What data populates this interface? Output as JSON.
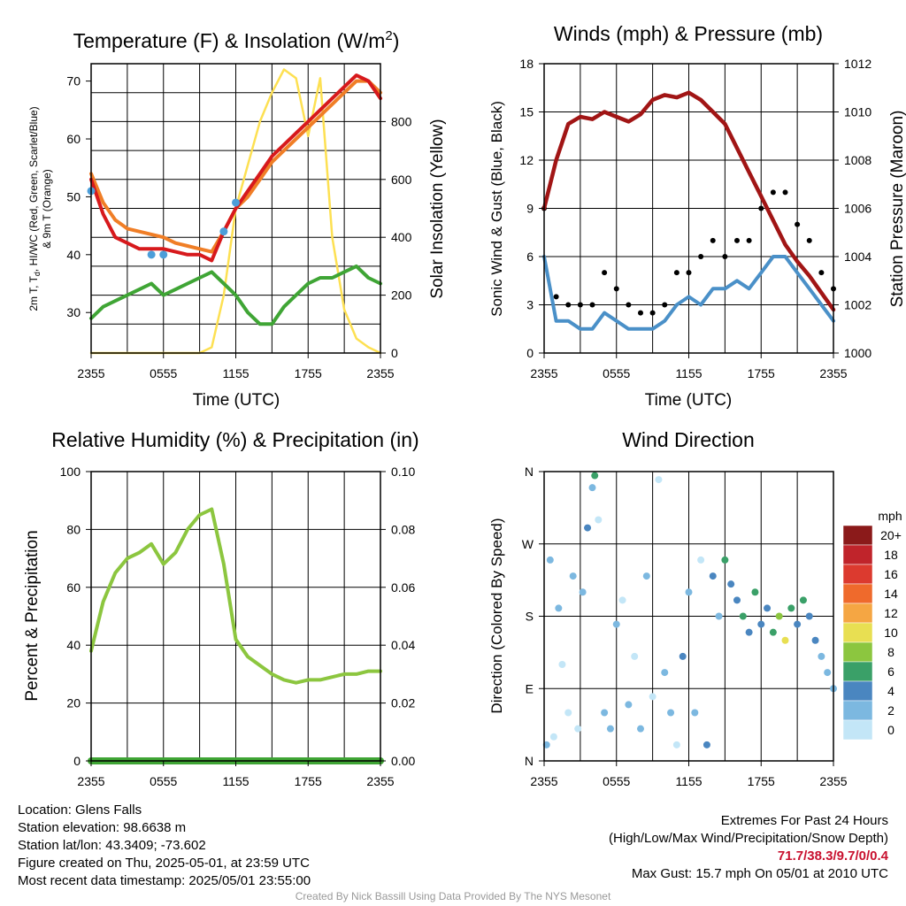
{
  "chart_data": [
    {
      "type": "line",
      "title": "Temperature (F) & Insolation (W/m²)",
      "title_main": "Temperature (F) & Insolation (W/m",
      "title_sup": "2",
      "title_close": ")",
      "xlabel": "Time (UTC)",
      "ylabel_line1": "2m T, T",
      "ylabel_sub": "d",
      "ylabel_line1_rest": ", HI/WC (Red, Green, Scarlet/Blue)",
      "ylabel_line2": "& 9m T (Orange)",
      "y2label": "Solar Insolation (Yellow)",
      "x_ticks": [
        "2355",
        "0555",
        "1155",
        "1755",
        "2355"
      ],
      "ylim": [
        23,
        73
      ],
      "y_ticks": [
        30,
        40,
        50,
        60,
        70
      ],
      "y2lim": [
        0,
        1000
      ],
      "y2_ticks": [
        0,
        200,
        400,
        600,
        800
      ],
      "x_hours": [
        0,
        1,
        2,
        3,
        4,
        5,
        6,
        7,
        8,
        9,
        10,
        11,
        12,
        13,
        14,
        15,
        16,
        17,
        18,
        19,
        20,
        21,
        22,
        23,
        24
      ],
      "series": [
        {
          "color": "#f07e26",
          "values": [
            54,
            49,
            46,
            44.5,
            44,
            43.5,
            43,
            42,
            41.5,
            41,
            40.5,
            44,
            48,
            50,
            53,
            56,
            58,
            60,
            62,
            64,
            66,
            68,
            70,
            70,
            68
          ]
        },
        {
          "color": "#d7191c",
          "values": [
            53,
            47,
            43,
            42,
            41,
            41,
            41,
            40.5,
            40,
            40,
            39,
            44,
            48,
            51,
            54,
            57,
            59,
            61,
            63,
            65,
            67,
            69,
            71,
            70,
            67
          ]
        },
        {
          "color": "#3fa535",
          "values": [
            29,
            31,
            32,
            33,
            34,
            35,
            33,
            34,
            35,
            36,
            37,
            35,
            33,
            30,
            28,
            28,
            31,
            33,
            35,
            36,
            36,
            37,
            38,
            36,
            35
          ]
        },
        {
          "color": "#4c9ed9",
          "values": [
            51,
            null,
            null,
            null,
            null,
            40,
            40,
            null,
            null,
            null,
            null,
            44,
            49,
            null,
            null,
            null,
            null,
            null,
            null,
            null,
            null,
            null,
            null,
            null,
            null
          ]
        }
      ],
      "insolation": {
        "color": "#fde052",
        "values": [
          0,
          0,
          0,
          0,
          0,
          0,
          0,
          0,
          0,
          0,
          20,
          200,
          500,
          650,
          800,
          900,
          980,
          950,
          750,
          950,
          400,
          150,
          50,
          20,
          0
        ]
      }
    },
    {
      "type": "scatter",
      "title": "Winds (mph) & Pressure (mb)",
      "xlabel": "Time (UTC)",
      "ylabel": "Sonic Wind & Gust (Blue, Black)",
      "y2label": "Station Pressure (Maroon)",
      "x_ticks": [
        "2355",
        "0555",
        "1155",
        "1755",
        "2355"
      ],
      "ylim": [
        0,
        18
      ],
      "y_ticks": [
        0,
        3,
        6,
        9,
        12,
        15,
        18
      ],
      "y2lim": [
        1000,
        1012
      ],
      "y2_ticks": [
        1000,
        1002,
        1004,
        1006,
        1008,
        1010,
        1012
      ],
      "x_hours": [
        0,
        1,
        2,
        3,
        4,
        5,
        6,
        7,
        8,
        9,
        10,
        11,
        12,
        13,
        14,
        15,
        16,
        17,
        18,
        19,
        20,
        21,
        22,
        23,
        24
      ],
      "wind": {
        "color": "#4a90c8",
        "values": [
          6,
          2,
          2,
          1.5,
          1.5,
          2.5,
          2,
          1.5,
          1.5,
          1.5,
          2,
          3,
          3.5,
          3,
          4,
          4,
          4.5,
          4,
          5,
          6,
          6,
          5,
          4,
          3,
          2
        ]
      },
      "gust": {
        "color": "#000000",
        "values": [
          9,
          3.5,
          3,
          3,
          3,
          5,
          4,
          3,
          2.5,
          2.5,
          3,
          5,
          5,
          6,
          7,
          6,
          7,
          7,
          9,
          10,
          10,
          8,
          7,
          5,
          4
        ]
      },
      "pressure": {
        "color": "#a11515",
        "values": [
          1006,
          1008,
          1009.5,
          1009.8,
          1009.7,
          1010,
          1009.8,
          1009.6,
          1009.9,
          1010.5,
          1010.7,
          1010.6,
          1010.8,
          1010.5,
          1010,
          1009.5,
          1008.5,
          1007.5,
          1006.5,
          1005.5,
          1004.5,
          1003.8,
          1003.2,
          1002.5,
          1001.8
        ]
      }
    },
    {
      "type": "line",
      "title": "Relative Humidity (%) & Precipitation (in)",
      "ylabel": "Percent & Precipitation",
      "x_ticks": [
        "2355",
        "0555",
        "1155",
        "1755",
        "2355"
      ],
      "ylim": [
        0,
        100
      ],
      "y_ticks": [
        0,
        20,
        40,
        60,
        80,
        100
      ],
      "y2lim": [
        0,
        0.1
      ],
      "y2_ticks": [
        "0.00",
        "0.02",
        "0.04",
        "0.06",
        "0.08",
        "0.10"
      ],
      "x_hours": [
        0,
        1,
        2,
        3,
        4,
        5,
        6,
        7,
        8,
        9,
        10,
        11,
        12,
        13,
        14,
        15,
        16,
        17,
        18,
        19,
        20,
        21,
        22,
        23,
        24
      ],
      "humidity": {
        "color": "#8cc63f",
        "values": [
          38,
          55,
          65,
          70,
          72,
          75,
          68,
          72,
          80,
          85,
          87,
          68,
          42,
          36,
          33,
          30,
          28,
          27,
          28,
          28,
          29,
          30,
          30,
          31,
          31
        ]
      },
      "precip": {
        "color": "#3fa535",
        "values": [
          0,
          0,
          0,
          0,
          0,
          0,
          0,
          0,
          0,
          0,
          0,
          0,
          0,
          0,
          0,
          0,
          0,
          0,
          0,
          0,
          0,
          0,
          0,
          0,
          0
        ]
      }
    },
    {
      "type": "scatter",
      "title": "Wind Direction",
      "ylabel": "Direction (Colored By Speed)",
      "x_ticks": [
        "2355",
        "0555",
        "1155",
        "1755",
        "2355"
      ],
      "y_ticks": [
        "N",
        "E",
        "S",
        "W",
        "N"
      ],
      "ylim": [
        0,
        360
      ],
      "colorbar": {
        "unit": "mph",
        "labels": [
          "20+",
          "18",
          "16",
          "14",
          "12",
          "10",
          "8",
          "6",
          "4",
          "2",
          "0"
        ],
        "colors": [
          "#8b1a1a",
          "#c0242b",
          "#dc3a2f",
          "#ef6a2c",
          "#f5a643",
          "#e8df52",
          "#8cc63f",
          "#3aa068",
          "#4a86c0",
          "#7cb8e0",
          "#c3e6f7"
        ]
      },
      "x_hours": [
        0.2,
        0.5,
        0.8,
        1.2,
        1.5,
        2,
        2.4,
        2.8,
        3.2,
        3.6,
        4,
        4.2,
        4.5,
        5,
        5.5,
        6,
        6.5,
        7,
        7.5,
        8,
        8.5,
        9,
        9.5,
        10,
        10.5,
        11,
        11.5,
        12,
        12.5,
        13,
        13.5,
        14,
        14.5,
        15,
        15.5,
        16,
        16.5,
        17,
        17.5,
        18,
        18.5,
        19,
        19.5,
        20,
        20.5,
        21,
        21.5,
        22,
        22.5,
        23,
        23.5,
        24
      ],
      "directions": [
        20,
        250,
        30,
        190,
        120,
        60,
        230,
        40,
        210,
        290,
        340,
        355,
        300,
        60,
        40,
        170,
        200,
        70,
        130,
        40,
        230,
        80,
        350,
        110,
        60,
        20,
        130,
        210,
        60,
        250,
        20,
        230,
        180,
        250,
        220,
        200,
        180,
        160,
        210,
        170,
        190,
        160,
        180,
        150,
        190,
        170,
        200,
        180,
        150,
        130,
        110,
        90
      ],
      "speeds": [
        2,
        3,
        1,
        2,
        1,
        1,
        2,
        1,
        2,
        4,
        2,
        6,
        1,
        2,
        3,
        2,
        1,
        3,
        1,
        2,
        3,
        1,
        1,
        2,
        3,
        1,
        4,
        2,
        2,
        1,
        4,
        5,
        3,
        6,
        4,
        5,
        6,
        4,
        7,
        5,
        4,
        6,
        8,
        10,
        6,
        4,
        7,
        5,
        4,
        3,
        2,
        2
      ]
    }
  ],
  "info": {
    "location": "Location: Glens Falls",
    "elevation": "Station elevation: 98.6638 m",
    "latlon": "Station lat/lon: 43.3409; -73.602",
    "created": "Figure created on Thu, 2025-05-01, at 23:59 UTC",
    "recent": "Most recent data timestamp: 2025/05/01 23:55:00"
  },
  "extremes": {
    "title": "Extremes For Past 24 Hours",
    "subtitle": "(High/Low/Max Wind/Precipitation/Snow Depth)",
    "values": "71.7/38.3/9.7/0/0.4",
    "max_gust": "Max Gust: 15.7 mph On 05/01 at 2010 UTC"
  },
  "credit": "Created By Nick Bassill Using Data Provided By The NYS Mesonet"
}
